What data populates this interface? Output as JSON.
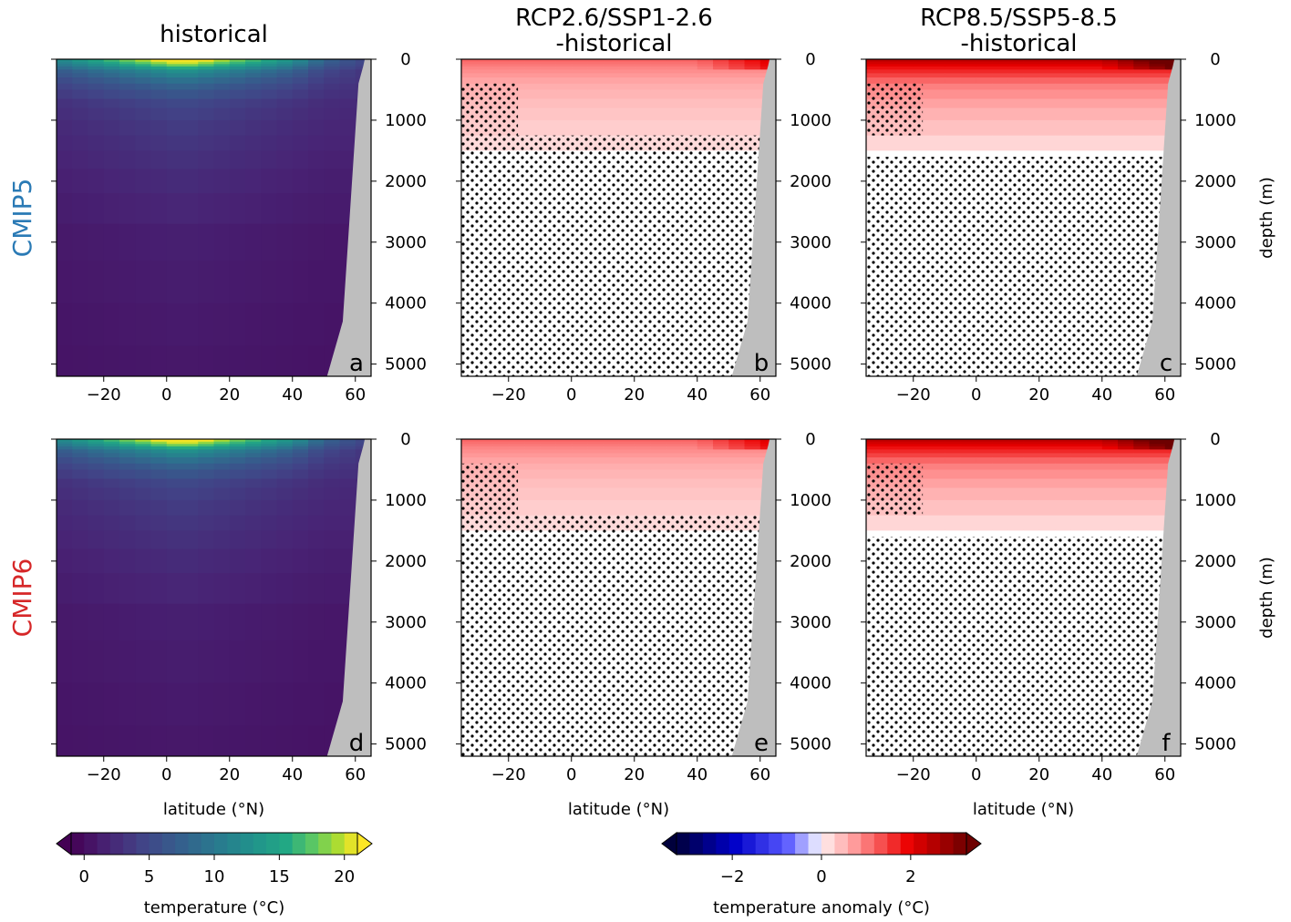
{
  "chart_data": {
    "type": "heatmap",
    "columns": [
      {
        "title_lines": [
          "historical"
        ]
      },
      {
        "title_lines": [
          "RCP2.6/SSP1-2.6",
          "-historical"
        ]
      },
      {
        "title_lines": [
          "RCP8.5/SSP5-8.5",
          "-historical"
        ]
      }
    ],
    "rows": [
      {
        "label": "CMIP5",
        "color": "#2a7ab5"
      },
      {
        "label": "CMIP6",
        "color": "#d62728"
      }
    ],
    "panel_letters": [
      "a",
      "b",
      "c",
      "d",
      "e",
      "f"
    ],
    "xlim": [
      -35,
      65
    ],
    "ylim": [
      0,
      5200
    ],
    "y_inverted": true,
    "xticks": [
      -20,
      0,
      20,
      40,
      60
    ],
    "xtick_labels": [
      "−20",
      "0",
      "20",
      "40",
      "60"
    ],
    "yticks": [
      0,
      1000,
      2000,
      3000,
      4000,
      5000
    ],
    "ytick_labels": [
      "0",
      "1000",
      "2000",
      "3000",
      "4000",
      "5000"
    ],
    "xlabel": "latitude (°N)",
    "ylabel": "depth (m)",
    "land_color": "#bebebe",
    "stippling": "black dots mark areas where the anomaly is not significant",
    "colorbar_temperature": {
      "label": "temperature (°C)",
      "ticks": [
        0,
        5,
        10,
        15,
        20
      ],
      "tick_labels": [
        "0",
        "5",
        "10",
        "15",
        "20"
      ],
      "range": [
        -1,
        21
      ],
      "colormap": "viridis",
      "extend": "both"
    },
    "colorbar_anomaly": {
      "label": "temperature anomaly (°C)",
      "ticks": [
        -2,
        0,
        2
      ],
      "tick_labels": [
        "−2",
        "0",
        "2"
      ],
      "range": [
        -3.25,
        3.25
      ],
      "colormap": "blue-white-red",
      "extend": "both"
    },
    "historical_temperature_profile": {
      "depth_m": [
        0,
        100,
        200,
        400,
        700,
        1000,
        1500,
        2000,
        3000,
        5200
      ],
      "tropical_temp_C": [
        22,
        17,
        12,
        8,
        5,
        4,
        3.2,
        2.5,
        1.5,
        0.8
      ]
    },
    "anomaly_profile_RCP2.6_SSP1-2.6": {
      "depth_m": [
        0,
        150,
        400,
        800,
        1300,
        1600
      ],
      "anomaly_C": [
        1.2,
        0.9,
        0.6,
        0.4,
        0.25,
        0
      ]
    },
    "anomaly_profile_RCP8.5_SSP5-8.5": {
      "depth_m": [
        0,
        150,
        400,
        800,
        1300,
        1600
      ],
      "anomaly_C": [
        2.5,
        1.8,
        1.0,
        0.6,
        0.3,
        0
      ]
    }
  }
}
